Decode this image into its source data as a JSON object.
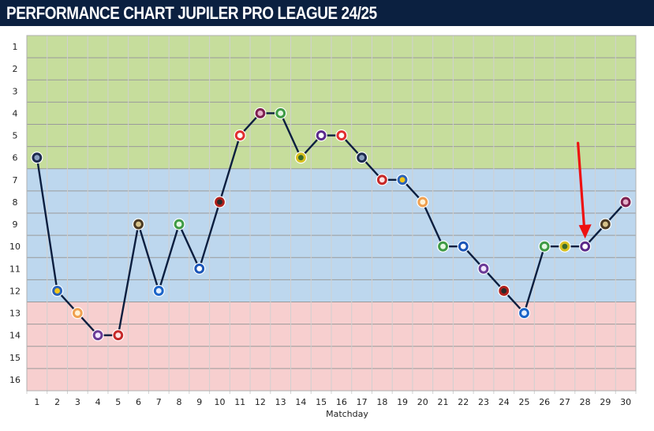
{
  "header": {
    "title": "PERFORMANCE CHART JUPILER PRO LEAGUE 24/25"
  },
  "colors": {
    "header_bg": "#0b2040",
    "zone_top": "#c6dd9c",
    "zone_middle": "#bdd7ee",
    "zone_bottom": "#f7cfcf",
    "line": "#0b1e3f",
    "arrow": "#ee1111"
  },
  "chart_data": {
    "type": "line",
    "xlabel": "Matchday",
    "ylabel": "",
    "x": [
      1,
      2,
      3,
      4,
      5,
      6,
      7,
      8,
      9,
      10,
      11,
      12,
      13,
      14,
      15,
      16,
      17,
      18,
      19,
      20,
      21,
      22,
      23,
      24,
      25,
      26,
      27,
      28,
      29,
      30
    ],
    "y_ticks": [
      1,
      2,
      3,
      4,
      5,
      6,
      7,
      8,
      9,
      10,
      11,
      12,
      13,
      14,
      15,
      16
    ],
    "ylim": [
      1,
      16
    ],
    "y_inverted": true,
    "series": [
      {
        "name": "",
        "values": [
          6,
          12,
          13,
          14,
          14,
          9,
          12,
          9,
          11,
          8,
          5,
          4,
          4,
          6,
          5,
          5,
          6,
          7,
          7,
          8,
          10,
          10,
          11,
          12,
          13,
          10,
          10,
          10,
          9,
          8
        ]
      }
    ],
    "zones": [
      {
        "from": 1,
        "to": 6,
        "color": "#c6dd9c"
      },
      {
        "from": 7,
        "to": 12,
        "color": "#bdd7ee"
      },
      {
        "from": 13,
        "to": 16,
        "color": "#f7cfcf"
      }
    ],
    "opponent_badge_icons": [
      "dark-round-crest-icon",
      "blue-yellow-shield-icon",
      "orange-crest-icon",
      "purple-m-crest-icon",
      "red-round-crest-icon",
      "striped-tower-crest-icon",
      "blue-round-crest-icon",
      "green-crest-icon",
      "blue-shield-crest-icon",
      "red-bar-crest-icon",
      "red-white-crest-icon",
      "red-purple-crest-icon",
      "green-crest-icon",
      "yellow-shield-crest-icon",
      "purple-shield-crest-icon",
      "red-white-crest-icon",
      "dark-round-crest-icon",
      "red-round-crest-icon",
      "blue-yellow-shield-icon",
      "orange-crest-icon",
      "green-crest-icon",
      "blue-shield-crest-icon",
      "purple-m-crest-icon",
      "red-bar-crest-icon",
      "blue-round-crest-icon",
      "green-crest-icon",
      "yellow-shield-crest-icon",
      "purple-shield-crest-icon",
      "striped-tower-crest-icon",
      "red-purple-crest-icon"
    ],
    "annotation": {
      "type": "arrow",
      "points_to_matchday": 28
    },
    "grid": true,
    "legend": "none"
  }
}
